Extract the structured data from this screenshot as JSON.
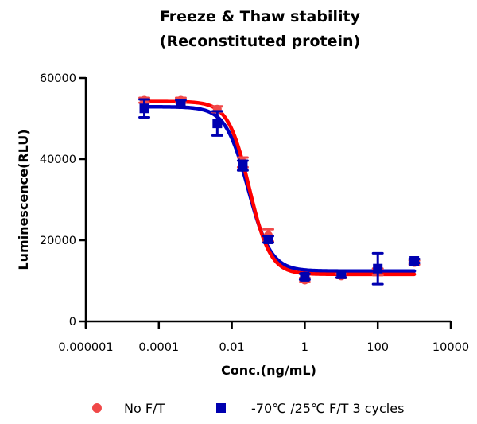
{
  "chart_data": {
    "type": "scatter",
    "title": [
      "Freeze & Thaw stability",
      "(Reconstituted protein)"
    ],
    "xlabel": "Conc.(ng/mL)",
    "ylabel": "Luminescence(RLU)",
    "xscale": "log",
    "xlim": [
      1e-06,
      10000
    ],
    "ylim": [
      0,
      60000
    ],
    "xticks": [
      1e-06,
      0.0001,
      0.01,
      1,
      100,
      10000
    ],
    "xtick_labels": [
      "0.000001",
      "0.0001",
      "0.01",
      "1",
      "100",
      "10000"
    ],
    "yticks": [
      0,
      20000,
      40000,
      60000
    ],
    "ytick_labels": [
      "0",
      "20000",
      "40000",
      "60000"
    ],
    "grid": false,
    "legend_position": "bottom",
    "x": [
      4e-05,
      0.0004,
      0.004,
      0.02,
      0.1,
      1,
      10,
      100,
      1000
    ],
    "series": [
      {
        "name": "No F/T",
        "marker": "circle",
        "color": "#ff0000",
        "marker_color": "#f04848",
        "values": [
          54500,
          54500,
          52300,
          39200,
          21200,
          10200,
          11200,
          12200,
          14500
        ],
        "errors": [
          600,
          600,
          700,
          1200,
          1500,
          500,
          500,
          800,
          500
        ],
        "fit": {
          "model": "4PL",
          "top": 54200,
          "bottom": 11600,
          "ec50": 0.03,
          "hill": -1.5
        }
      },
      {
        "name": "-70℃ /25℃  F/T 3 cycles",
        "marker": "square",
        "color": "#0000c0",
        "marker_color": "#0000b0",
        "values": [
          52500,
          53700,
          48800,
          38400,
          20200,
          11000,
          11600,
          13000,
          14900
        ],
        "errors": [
          2200,
          800,
          3000,
          1200,
          800,
          700,
          800,
          3800,
          500
        ],
        "fit": {
          "model": "4PL",
          "top": 52900,
          "bottom": 12400,
          "ec50": 0.028,
          "hill": -1.4
        }
      }
    ]
  }
}
